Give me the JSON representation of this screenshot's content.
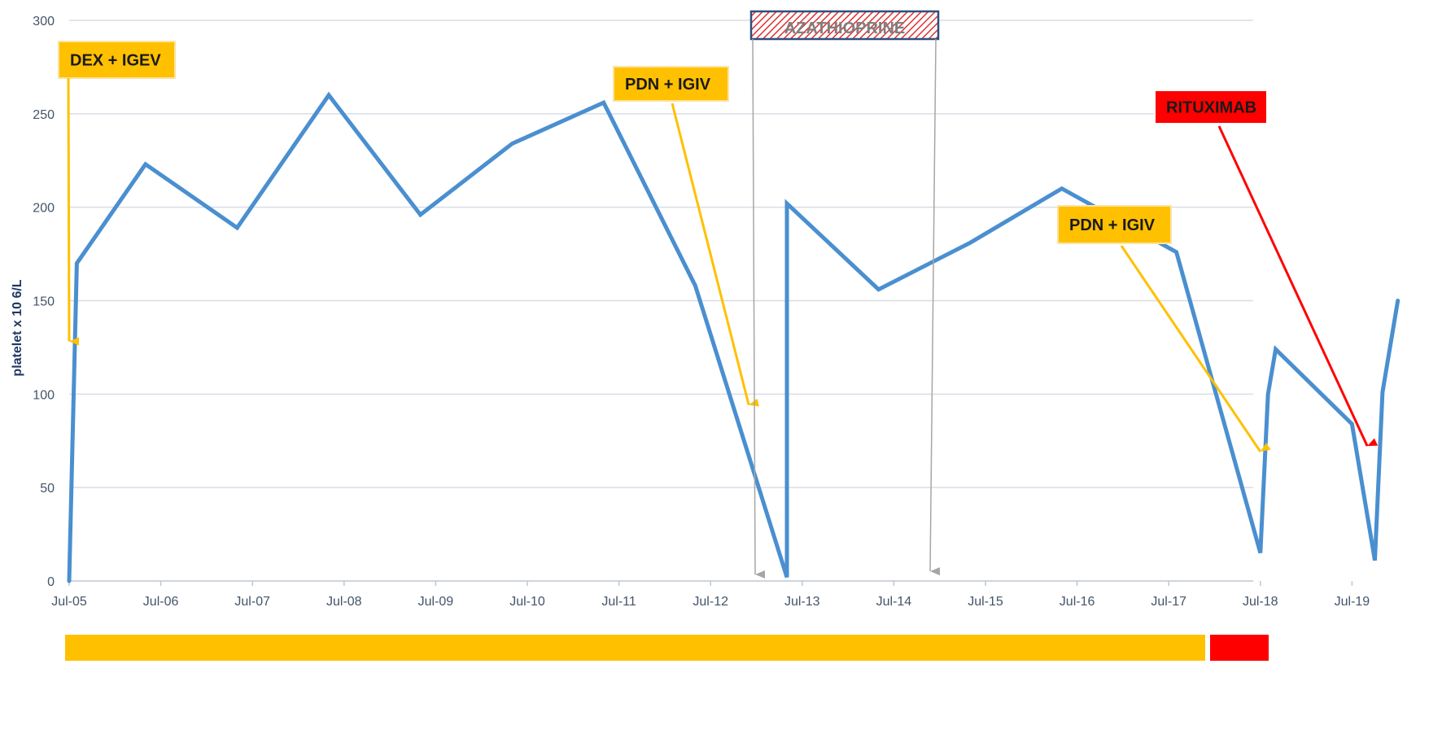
{
  "chart_data": {
    "type": "line",
    "ylabel": "platelet x 10 6/L",
    "ylim": [
      0,
      300
    ],
    "yticks": [
      0,
      50,
      100,
      150,
      200,
      250,
      300
    ],
    "xlim": [
      "2005-07",
      "2019-10"
    ],
    "xticks": [
      "Jul-05",
      "Jul-06",
      "Jul-07",
      "Jul-08",
      "Jul-09",
      "Jul-10",
      "Jul-11",
      "Jul-12",
      "Jul-13",
      "Jul-14",
      "Jul-15",
      "Jul-16",
      "Jul-17",
      "Jul-18",
      "Jul-19"
    ],
    "grid": true,
    "series": [
      {
        "color": "#4a8fd0",
        "points": [
          {
            "x": "2005-07",
            "y": 0
          },
          {
            "x": "2005-08",
            "y": 170
          },
          {
            "x": "2006-05",
            "y": 223
          },
          {
            "x": "2007-05",
            "y": 189
          },
          {
            "x": "2008-05",
            "y": 260
          },
          {
            "x": "2009-05",
            "y": 196
          },
          {
            "x": "2010-05",
            "y": 234
          },
          {
            "x": "2011-05",
            "y": 256
          },
          {
            "x": "2012-05",
            "y": 158
          },
          {
            "x": "2013-05",
            "y": 2
          },
          {
            "x": "2013-05",
            "y": 202
          },
          {
            "x": "2014-05",
            "y": 156
          },
          {
            "x": "2015-05",
            "y": 181
          },
          {
            "x": "2016-05",
            "y": 210
          },
          {
            "x": "2017-08",
            "y": 176
          },
          {
            "x": "2018-07",
            "y": 15
          },
          {
            "x": "2018-08",
            "y": 100
          },
          {
            "x": "2018-09",
            "y": 124
          },
          {
            "x": "2019-07",
            "y": 84
          },
          {
            "x": "2019-10",
            "y": 11
          },
          {
            "x": "2019-11",
            "y": 101
          },
          {
            "x": "2020-01",
            "y": 150
          }
        ]
      }
    ],
    "annotations": [
      {
        "label": "DEX + IGEV",
        "box_color": "#ffc000",
        "arrow_color": "#ffc000",
        "arrow_x": "2005-07",
        "arrow_y": 123
      },
      {
        "label": "PDN + IGIV",
        "box_color": "#ffc000",
        "arrow_color": "#ffc000",
        "arrow_x": "2012-12",
        "arrow_y": 89
      },
      {
        "label": "PDN + IGIV",
        "box_color": "#ffc000",
        "arrow_color": "#ffc000",
        "arrow_x": "2018-07",
        "arrow_y": 64
      },
      {
        "label": "RITUXIMAB",
        "box_color": "#ff0000",
        "arrow_color": "#ff0000",
        "arrow_x": "2019-09",
        "arrow_y": 67
      },
      {
        "label": "AZATHIOPRINE",
        "type": "span",
        "box_color": "#c00000",
        "arrow_color": "#a6a6a6",
        "start": "2014-01",
        "end": "2016-02"
      }
    ],
    "treatment_bars": [
      {
        "color": "#ffc000",
        "start": "2005-07",
        "end": "2019-07"
      },
      {
        "color": "#ff0000",
        "start": "2019-08",
        "end": "2020-02"
      }
    ]
  }
}
